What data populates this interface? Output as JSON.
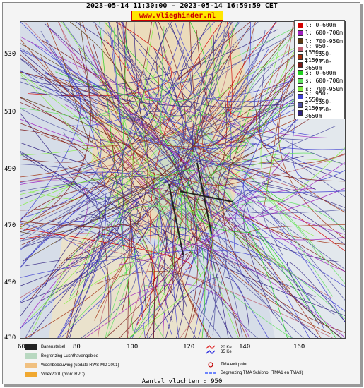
{
  "header": {
    "title": "2023-05-14 11:30:00 - 2023-05-14 16:59:59 CET",
    "site": "www.vlieghinder.nl"
  },
  "axes": {
    "y_ticks": [
      "530",
      "510",
      "490",
      "470",
      "450",
      "430"
    ],
    "x_ticks": [
      "60",
      "80",
      "100",
      "120",
      "140",
      "160"
    ]
  },
  "legend": {
    "items": [
      {
        "label": "l: 0-600m",
        "color": "#d40000"
      },
      {
        "label": "l: 600-700m",
        "color": "#a020c0"
      },
      {
        "label": "l: 700-950m",
        "color": "#5a3a10"
      },
      {
        "label": "l: 950-1550m",
        "color": "#c06070"
      },
      {
        "label": "l: 1550-2150m",
        "color": "#a03010"
      },
      {
        "label": "l: 2150-3650m",
        "color": "#7a1818"
      },
      {
        "label": "s: 0-600m",
        "color": "#20d020"
      },
      {
        "label": "s: 600-700m",
        "color": "#60e060"
      },
      {
        "label": "s: 700-950m",
        "color": "#80f040"
      },
      {
        "label": "s: 950-1550m",
        "color": "#4040d0"
      },
      {
        "label": "s: 1550-2150m",
        "color": "#5050a0"
      },
      {
        "label": "s: 2150-3650m",
        "color": "#302080"
      }
    ]
  },
  "map_legend": {
    "left": [
      {
        "label": "Banenstelsel",
        "color": "#222222"
      },
      {
        "label": "Begrenzing Luchthavengebied",
        "color": "#b8d8c0"
      },
      {
        "label": "Woonbebouwing (update RWS-MD 2001)",
        "color": "#f0c080"
      },
      {
        "label": "Vinex2001 (bron: RPD)",
        "color": "#f0a830"
      }
    ],
    "right": [
      {
        "label": "20 Ke",
        "color": "#e03030"
      },
      {
        "label": "35 Ke",
        "color": "#3030e0"
      },
      {
        "label": "TMA exit point",
        "color": "#c00000"
      },
      {
        "label": "Begrenzing TMA Schiphol  (TMA1 en TMA3)",
        "color": "#4060ff"
      }
    ]
  },
  "footer": {
    "label": "Aantal vluchten : 950"
  }
}
